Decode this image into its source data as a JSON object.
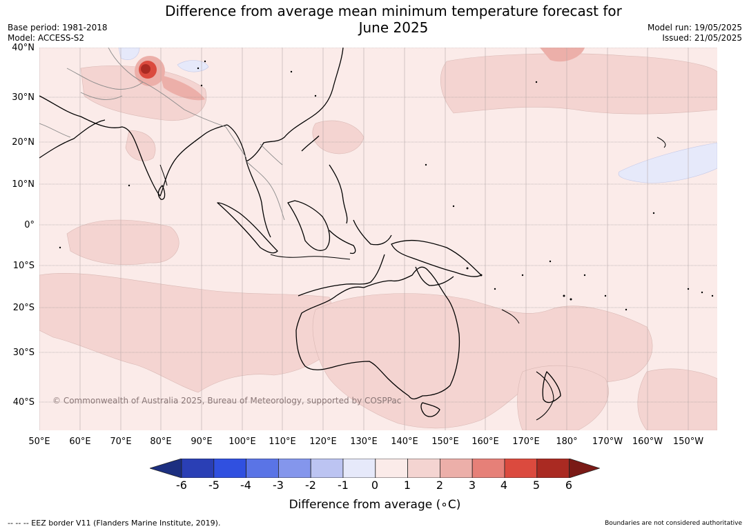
{
  "title": "Difference from average mean minimum temperature forecast for\nJune 2025",
  "meta_left": {
    "base_period": "Base period: 1981-2018",
    "model": "Model: ACCESS-S2"
  },
  "meta_right": {
    "model_run": "Model run: 19/05/2025",
    "issued": "Issued: 21/05/2025"
  },
  "copyright": "© Commonwealth of Australia 2025, Bureau of Meteorology, supported by COSPPac",
  "footer": {
    "eez": "--  --  -- EEZ border V11 (Flanders Marine Institute, 2019).",
    "boundaries": "Boundaries are not considered authoritative"
  },
  "lat_ticks": [
    "40°N",
    "30°N",
    "20°N",
    "10°N",
    "0°",
    "10°S",
    "20°S",
    "30°S",
    "40°S"
  ],
  "lon_ticks": [
    "50°E",
    "60°E",
    "70°E",
    "80°E",
    "90°E",
    "100°E",
    "110°E",
    "120°E",
    "130°E",
    "140°E",
    "150°E",
    "160°E",
    "170°E",
    "180°",
    "170°W",
    "160°W",
    "150°W"
  ],
  "colorbar": {
    "label": "Difference from average (∘C)",
    "ticks": [
      "-6",
      "-5",
      "-4",
      "-3",
      "-2",
      "-1",
      "0",
      "1",
      "2",
      "3",
      "4",
      "5",
      "6"
    ],
    "colors": [
      "#1c2f80",
      "#2a3fb5",
      "#3050e0",
      "#5a74e6",
      "#8496ec",
      "#bcc4f2",
      "#e6e9fa",
      "#fbebe9",
      "#f4d4d1",
      "#ecafa9",
      "#e68078",
      "#db4a3e",
      "#aa2a22",
      "#7a1a16"
    ]
  },
  "legend_colors": {
    "land_outline": "#000000",
    "near_zero_warm": "#fbebe9",
    "warm_1_2": "#f4d4d1",
    "warm_2_3": "#ecafa9",
    "cool_0_1": "#e6e9fa",
    "hot_spot": "#aa2a22"
  }
}
